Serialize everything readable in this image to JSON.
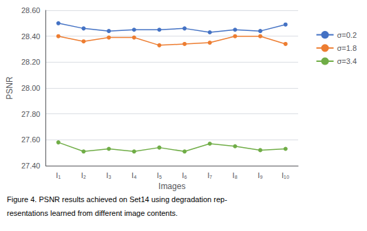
{
  "chart_data": {
    "type": "line",
    "x_label": "Images",
    "y_label": "PSNR",
    "categories": [
      "I₁",
      "I₂",
      "I₃",
      "I₄",
      "I₅",
      "I₆",
      "I₇",
      "I₈",
      "I₉",
      "I₁₀"
    ],
    "series": [
      {
        "name": "σ=0.2",
        "color": "#4472C4",
        "values": [
          28.5,
          28.46,
          28.44,
          28.45,
          28.45,
          28.46,
          28.43,
          28.45,
          28.44,
          28.49
        ]
      },
      {
        "name": "σ=1.8",
        "color": "#ED7D31",
        "values": [
          28.4,
          28.36,
          28.39,
          28.39,
          28.33,
          28.34,
          28.35,
          28.4,
          28.4,
          28.34
        ]
      },
      {
        "name": "σ=3.4",
        "color": "#70AD47",
        "values": [
          27.58,
          27.51,
          27.53,
          27.51,
          27.54,
          27.51,
          27.57,
          27.55,
          27.52,
          27.53
        ]
      }
    ],
    "ylim": [
      27.4,
      28.6
    ],
    "yticks": [
      {
        "value": 27.4,
        "label": "27.40"
      },
      {
        "value": 27.6,
        "label": "27.60"
      },
      {
        "value": 27.8,
        "label": "27.80"
      },
      {
        "value": 28.0,
        "label": "28.00"
      },
      {
        "value": 28.2,
        "label": "28.20"
      },
      {
        "value": 28.4,
        "label": "28.40"
      },
      {
        "value": 28.6,
        "label": "28.60"
      }
    ],
    "grid": true,
    "legend": "right",
    "marker": "circle",
    "annotations": [
      "Figure 4. PSNR results achieved on Set14 using degradation rep-",
      "resentations learned from different image contents."
    ]
  }
}
